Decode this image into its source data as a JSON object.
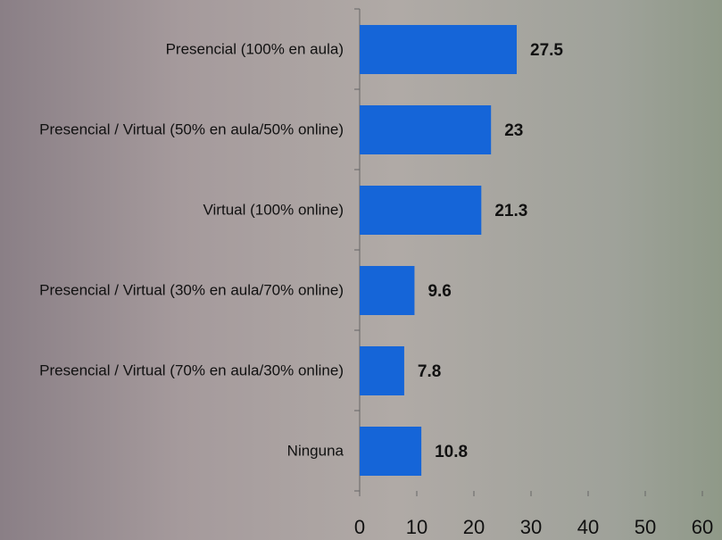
{
  "chart_data": {
    "type": "bar",
    "orientation": "horizontal",
    "categories": [
      "Presencial (100% en aula)",
      "Presencial / Virtual (50% en aula/50% online)",
      "Virtual (100% online)",
      "Presencial / Virtual (30% en aula/70% online)",
      "Presencial / Virtual (70% en aula/30% online)",
      "Ninguna"
    ],
    "values": [
      27.5,
      23,
      21.3,
      9.6,
      7.8,
      10.8
    ],
    "color": "#1565d8",
    "xlim": [
      0,
      60
    ],
    "xticks": [
      0,
      10,
      20,
      30,
      40,
      50,
      60
    ],
    "grid": false
  }
}
